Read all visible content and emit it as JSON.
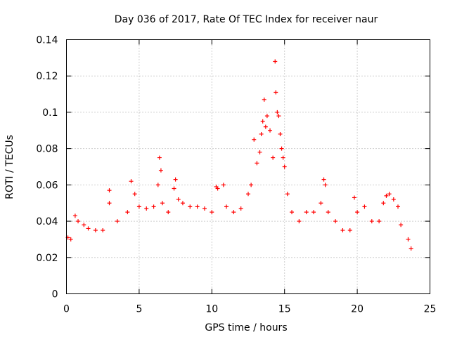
{
  "chart_data": {
    "type": "scatter",
    "title": "Day 036 of 2017, Rate Of TEC Index for receiver naur",
    "xlabel": "GPS time / hours",
    "ylabel": "ROTI / TECUs",
    "xlim": [
      0,
      25
    ],
    "ylim": [
      0,
      0.14
    ],
    "xticks": [
      "0",
      "5",
      "10",
      "15",
      "20",
      "25"
    ],
    "yticks": [
      "0",
      "0.02",
      "0.04",
      "0.06",
      "0.08",
      "0.1",
      "0.12",
      "0.14"
    ],
    "grid": true,
    "marker": "plus",
    "color": "#ff0000",
    "series": [
      {
        "points": [
          [
            0.1,
            0.031
          ],
          [
            0.3,
            0.03
          ],
          [
            0.6,
            0.043
          ],
          [
            0.8,
            0.04
          ],
          [
            1.2,
            0.038
          ],
          [
            1.5,
            0.036
          ],
          [
            2.0,
            0.035
          ],
          [
            2.5,
            0.035
          ],
          [
            2.95,
            0.057
          ],
          [
            2.95,
            0.05
          ],
          [
            3.5,
            0.04
          ],
          [
            4.2,
            0.045
          ],
          [
            4.45,
            0.062
          ],
          [
            4.7,
            0.055
          ],
          [
            5.0,
            0.048
          ],
          [
            5.5,
            0.047
          ],
          [
            6.0,
            0.048
          ],
          [
            6.3,
            0.06
          ],
          [
            6.4,
            0.075
          ],
          [
            6.5,
            0.068
          ],
          [
            6.6,
            0.05
          ],
          [
            7.0,
            0.045
          ],
          [
            7.4,
            0.058
          ],
          [
            7.5,
            0.063
          ],
          [
            7.7,
            0.052
          ],
          [
            8.0,
            0.05
          ],
          [
            8.5,
            0.048
          ],
          [
            9.0,
            0.048
          ],
          [
            9.5,
            0.047
          ],
          [
            10.0,
            0.045
          ],
          [
            10.3,
            0.059
          ],
          [
            10.4,
            0.058
          ],
          [
            10.8,
            0.06
          ],
          [
            11.0,
            0.048
          ],
          [
            11.5,
            0.045
          ],
          [
            12.0,
            0.047
          ],
          [
            12.5,
            0.055
          ],
          [
            12.7,
            0.06
          ],
          [
            12.9,
            0.085
          ],
          [
            13.1,
            0.072
          ],
          [
            13.3,
            0.078
          ],
          [
            13.4,
            0.088
          ],
          [
            13.5,
            0.095
          ],
          [
            13.6,
            0.107
          ],
          [
            13.7,
            0.092
          ],
          [
            13.8,
            0.098
          ],
          [
            14.0,
            0.09
          ],
          [
            14.2,
            0.075
          ],
          [
            14.35,
            0.128
          ],
          [
            14.4,
            0.111
          ],
          [
            14.5,
            0.1
          ],
          [
            14.6,
            0.098
          ],
          [
            14.7,
            0.088
          ],
          [
            14.8,
            0.08
          ],
          [
            14.9,
            0.075
          ],
          [
            15.0,
            0.07
          ],
          [
            15.2,
            0.055
          ],
          [
            15.5,
            0.045
          ],
          [
            16.0,
            0.04
          ],
          [
            16.5,
            0.045
          ],
          [
            17.0,
            0.045
          ],
          [
            17.5,
            0.05
          ],
          [
            17.7,
            0.063
          ],
          [
            17.8,
            0.06
          ],
          [
            18.0,
            0.045
          ],
          [
            18.5,
            0.04
          ],
          [
            19.0,
            0.035
          ],
          [
            19.5,
            0.035
          ],
          [
            19.8,
            0.053
          ],
          [
            20.0,
            0.045
          ],
          [
            20.5,
            0.048
          ],
          [
            21.0,
            0.04
          ],
          [
            21.5,
            0.04
          ],
          [
            21.8,
            0.05
          ],
          [
            22.0,
            0.054
          ],
          [
            22.2,
            0.055
          ],
          [
            22.5,
            0.052
          ],
          [
            22.8,
            0.048
          ],
          [
            23.0,
            0.038
          ],
          [
            23.5,
            0.03
          ],
          [
            23.7,
            0.025
          ]
        ]
      }
    ]
  }
}
